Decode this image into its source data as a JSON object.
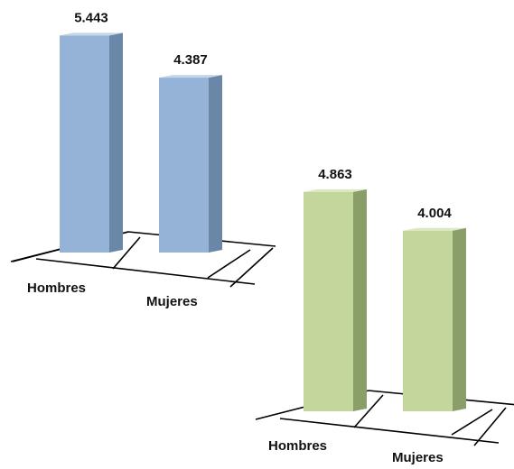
{
  "chart_data": [
    {
      "type": "bar",
      "title": "",
      "xlabel": "",
      "ylabel": "",
      "categories": [
        "Hombres",
        "Mujeres"
      ],
      "values": [
        5.443,
        4.387
      ],
      "value_labels": [
        "5.443",
        "4.387"
      ],
      "ylim": [
        0,
        6
      ],
      "grid": false,
      "legend": "none",
      "style": "3d-column",
      "colors": {
        "front": "#95b3d7",
        "side": "#6b87a8",
        "top": "#c5d6ea"
      }
    },
    {
      "type": "bar",
      "title": "",
      "xlabel": "",
      "ylabel": "",
      "categories": [
        "Hombres",
        "Mujeres"
      ],
      "values": [
        4.863,
        4.004
      ],
      "value_labels": [
        "4.863",
        "4.004"
      ],
      "ylim": [
        0,
        6
      ],
      "grid": false,
      "legend": "none",
      "style": "3d-column",
      "colors": {
        "front": "#c3d69b",
        "side": "#8a9e6a",
        "top": "#dce8c4"
      }
    }
  ]
}
